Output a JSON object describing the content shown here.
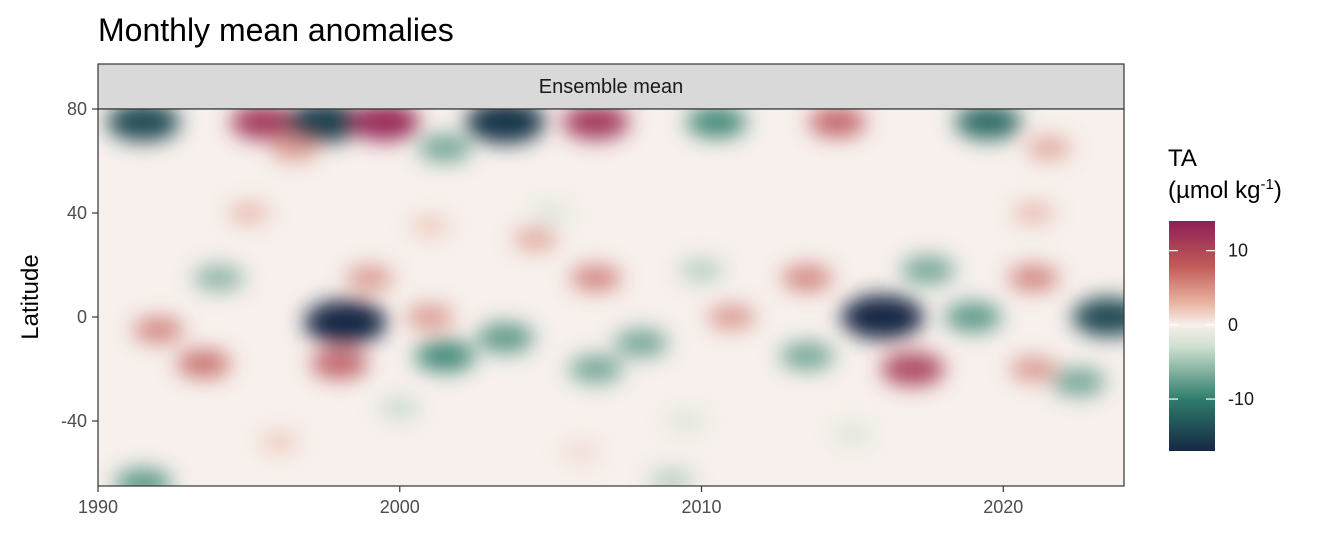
{
  "chart_data": {
    "type": "heatmap",
    "title": "Monthly mean anomalies",
    "facet_label": "Ensemble mean",
    "xlabel": "",
    "ylabel": "Latitude",
    "xlim": [
      1990,
      2024
    ],
    "ylim": [
      -65,
      80
    ],
    "x_ticks": [
      1990,
      2000,
      2010,
      2020
    ],
    "y_ticks": [
      -40,
      0,
      40,
      80
    ],
    "legend": {
      "title_line1": "TA",
      "title_line2_prefix": "(µmol kg",
      "title_line2_sup": "-1",
      "title_line2_suffix": ")",
      "placement": "right",
      "range": [
        -17,
        14
      ],
      "ticks": [
        -10,
        0,
        10
      ],
      "colors": {
        "min": "#152845",
        "low": "#2f7d6b",
        "mid_low": "#cde0cf",
        "mid": "#f7f0ec",
        "mid_high": "#e9b3a1",
        "high": "#c05a57",
        "max": "#8e1e55"
      }
    },
    "grid": false,
    "anomalies": [
      {
        "year": 1991.5,
        "lat": 75,
        "value": -14
      },
      {
        "year": 1995.5,
        "lat": 75,
        "value": 12
      },
      {
        "year": 1997.5,
        "lat": 75,
        "value": -15
      },
      {
        "year": 1999.5,
        "lat": 75,
        "value": 13
      },
      {
        "year": 2003.5,
        "lat": 75,
        "value": -16
      },
      {
        "year": 2006.5,
        "lat": 75,
        "value": 12
      },
      {
        "year": 2010.5,
        "lat": 75,
        "value": -10
      },
      {
        "year": 2014.5,
        "lat": 75,
        "value": 9
      },
      {
        "year": 2019.5,
        "lat": 75,
        "value": -12
      },
      {
        "year": 2001.5,
        "lat": 65,
        "value": -8
      },
      {
        "year": 1996.5,
        "lat": 65,
        "value": 6
      },
      {
        "year": 2021.5,
        "lat": 65,
        "value": 5
      },
      {
        "year": 1995.0,
        "lat": 40,
        "value": 4
      },
      {
        "year": 2021.0,
        "lat": 40,
        "value": 4
      },
      {
        "year": 2005.0,
        "lat": 40,
        "value": -3
      },
      {
        "year": 2004.5,
        "lat": 30,
        "value": 5
      },
      {
        "year": 2001.0,
        "lat": 35,
        "value": 3
      },
      {
        "year": 1994.0,
        "lat": 15,
        "value": -7
      },
      {
        "year": 1999.0,
        "lat": 15,
        "value": 6
      },
      {
        "year": 2006.5,
        "lat": 15,
        "value": 7
      },
      {
        "year": 2010.0,
        "lat": 18,
        "value": -5
      },
      {
        "year": 2013.5,
        "lat": 15,
        "value": 7
      },
      {
        "year": 2017.5,
        "lat": 18,
        "value": -8
      },
      {
        "year": 2021.0,
        "lat": 15,
        "value": 7
      },
      {
        "year": 1992.0,
        "lat": -5,
        "value": 7
      },
      {
        "year": 1998.2,
        "lat": -2,
        "value": -17
      },
      {
        "year": 2001.0,
        "lat": 0,
        "value": 6
      },
      {
        "year": 2003.5,
        "lat": -8,
        "value": -9
      },
      {
        "year": 2008.0,
        "lat": -10,
        "value": -8
      },
      {
        "year": 2011.0,
        "lat": 0,
        "value": 6
      },
      {
        "year": 2016.0,
        "lat": 0,
        "value": -17
      },
      {
        "year": 2019.0,
        "lat": 0,
        "value": -9
      },
      {
        "year": 2023.5,
        "lat": 0,
        "value": -14
      },
      {
        "year": 1993.5,
        "lat": -18,
        "value": 8
      },
      {
        "year": 1998.0,
        "lat": -18,
        "value": 9
      },
      {
        "year": 2001.5,
        "lat": -15,
        "value": -10
      },
      {
        "year": 2006.5,
        "lat": -20,
        "value": -8
      },
      {
        "year": 2013.5,
        "lat": -15,
        "value": -8
      },
      {
        "year": 2017.0,
        "lat": -20,
        "value": 11
      },
      {
        "year": 2021.0,
        "lat": -20,
        "value": 6
      },
      {
        "year": 2022.5,
        "lat": -25,
        "value": -8
      },
      {
        "year": 2000.0,
        "lat": -35,
        "value": -4
      },
      {
        "year": 2009.5,
        "lat": -40,
        "value": -3
      },
      {
        "year": 2015.0,
        "lat": -45,
        "value": -3
      },
      {
        "year": 1996.0,
        "lat": -48,
        "value": 3
      },
      {
        "year": 2006.0,
        "lat": -52,
        "value": 2
      },
      {
        "year": 1991.5,
        "lat": -64,
        "value": -9
      },
      {
        "year": 2009.0,
        "lat": -63,
        "value": -5
      }
    ]
  }
}
